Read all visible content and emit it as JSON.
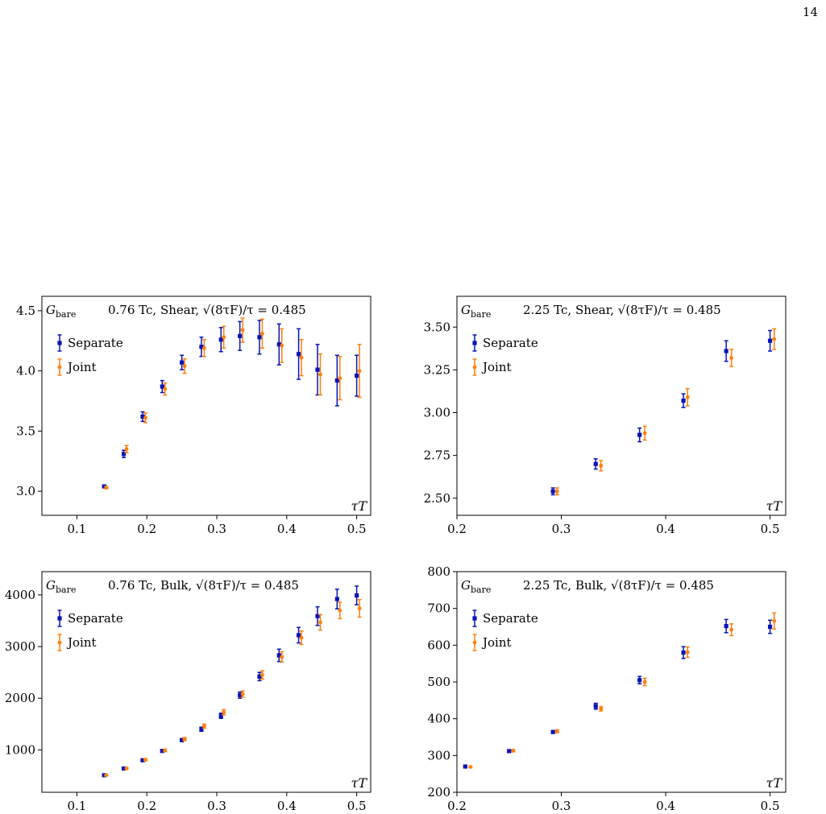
{
  "page": {
    "page_number": "14"
  },
  "colors": {
    "separate": "#0a14b4",
    "joint": "#ff7f0e",
    "axes": "#000000"
  },
  "chart_data": [
    {
      "type": "scatter",
      "title": "0.76 Tc, Shear, √(8τF)/τ = 0.485",
      "ylabel_inset": "G_bare",
      "xlabel": "τT",
      "xlim": [
        0.05,
        0.52
      ],
      "ylim": [
        2.8,
        4.62
      ],
      "xticks": [
        0.1,
        0.2,
        0.3,
        0.4,
        0.5
      ],
      "xtick_labels": [
        "0.1",
        "0.2",
        "0.3",
        "0.4",
        "0.5"
      ],
      "yticks": [
        3.0,
        3.5,
        4.0,
        4.5
      ],
      "ytick_labels": [
        "3.0",
        "3.5",
        "4.0",
        "4.5"
      ],
      "legend_position": "upper-left",
      "series": [
        {
          "name": "Separate",
          "marker": "square",
          "x": [
            0.139,
            0.167,
            0.194,
            0.222,
            0.25,
            0.278,
            0.306,
            0.333,
            0.361,
            0.389,
            0.417,
            0.444,
            0.472,
            0.5
          ],
          "y": [
            3.04,
            3.31,
            3.62,
            3.87,
            4.07,
            4.2,
            4.26,
            4.29,
            4.28,
            4.22,
            4.14,
            4.01,
            3.92,
            3.96
          ],
          "yerr": [
            0.01,
            0.03,
            0.04,
            0.05,
            0.06,
            0.08,
            0.1,
            0.12,
            0.14,
            0.17,
            0.21,
            0.21,
            0.21,
            0.17
          ]
        },
        {
          "name": "Joint",
          "marker": "dot",
          "x": [
            0.142,
            0.171,
            0.198,
            0.226,
            0.254,
            0.282,
            0.31,
            0.337,
            0.365,
            0.393,
            0.421,
            0.448,
            0.476,
            0.504
          ],
          "y": [
            3.03,
            3.35,
            3.61,
            3.85,
            4.04,
            4.19,
            4.28,
            4.34,
            4.31,
            4.21,
            4.11,
            3.97,
            3.94,
            4.0
          ],
          "yerr": [
            0.01,
            0.03,
            0.04,
            0.05,
            0.06,
            0.07,
            0.09,
            0.1,
            0.12,
            0.14,
            0.15,
            0.17,
            0.18,
            0.22
          ]
        }
      ]
    },
    {
      "type": "scatter",
      "title": "2.25 Tc, Shear, √(8τF)/τ = 0.485",
      "ylabel_inset": "G_bare",
      "xlabel": "τT",
      "xlim": [
        0.2,
        0.515
      ],
      "ylim": [
        2.4,
        3.68
      ],
      "xticks": [
        0.2,
        0.3,
        0.4,
        0.5
      ],
      "xtick_labels": [
        "0.2",
        "0.3",
        "0.4",
        "0.5"
      ],
      "yticks": [
        2.5,
        2.75,
        3.0,
        3.25,
        3.5
      ],
      "ytick_labels": [
        "2.50",
        "2.75",
        "3.00",
        "3.25",
        "3.50"
      ],
      "legend_position": "upper-left",
      "series": [
        {
          "name": "Separate",
          "marker": "square",
          "x": [
            0.292,
            0.333,
            0.375,
            0.417,
            0.458,
            0.5
          ],
          "y": [
            2.54,
            2.7,
            2.87,
            3.07,
            3.36,
            3.42
          ],
          "yerr": [
            0.02,
            0.03,
            0.04,
            0.04,
            0.06,
            0.06
          ]
        },
        {
          "name": "Joint",
          "marker": "dot",
          "x": [
            0.296,
            0.338,
            0.38,
            0.421,
            0.463,
            0.504
          ],
          "y": [
            2.54,
            2.69,
            2.88,
            3.09,
            3.32,
            3.43
          ],
          "yerr": [
            0.02,
            0.03,
            0.04,
            0.05,
            0.05,
            0.06
          ]
        }
      ]
    },
    {
      "type": "scatter",
      "title": "0.76 Tc, Bulk, √(8τF)/τ = 0.485",
      "ylabel_inset": "G_bare",
      "xlabel": "τT",
      "xlim": [
        0.05,
        0.52
      ],
      "ylim": [
        180,
        4450
      ],
      "xticks": [
        0.1,
        0.2,
        0.3,
        0.4,
        0.5
      ],
      "xtick_labels": [
        "0.1",
        "0.2",
        "0.3",
        "0.4",
        "0.5"
      ],
      "yticks": [
        1000,
        2000,
        3000,
        4000
      ],
      "ytick_labels": [
        "1000",
        "2000",
        "3000",
        "4000"
      ],
      "legend_position": "upper-left",
      "series": [
        {
          "name": "Separate",
          "marker": "square",
          "x": [
            0.139,
            0.167,
            0.194,
            0.222,
            0.25,
            0.278,
            0.306,
            0.333,
            0.361,
            0.389,
            0.417,
            0.444,
            0.472,
            0.5
          ],
          "y": [
            510,
            640,
            800,
            980,
            1190,
            1400,
            1660,
            2060,
            2420,
            2830,
            3220,
            3590,
            3920,
            3990
          ],
          "yerr": [
            10,
            15,
            20,
            25,
            30,
            40,
            50,
            60,
            80,
            120,
            150,
            180,
            190,
            180
          ]
        },
        {
          "name": "Joint",
          "marker": "dot",
          "x": [
            0.142,
            0.171,
            0.198,
            0.226,
            0.254,
            0.282,
            0.31,
            0.337,
            0.365,
            0.393,
            0.421,
            0.448,
            0.476,
            0.504
          ],
          "y": [
            510,
            640,
            810,
            990,
            1210,
            1460,
            1730,
            2080,
            2450,
            2800,
            3170,
            3470,
            3700,
            3740
          ],
          "yerr": [
            10,
            15,
            20,
            25,
            30,
            40,
            50,
            60,
            80,
            100,
            130,
            150,
            160,
            170
          ]
        }
      ]
    },
    {
      "type": "scatter",
      "title": "2.25 Tc, Bulk, √(8τF)/τ = 0.485",
      "ylabel_inset": "G_bare",
      "xlabel": "τT",
      "xlim": [
        0.2,
        0.515
      ],
      "ylim": [
        200,
        800
      ],
      "xticks": [
        0.2,
        0.3,
        0.4,
        0.5
      ],
      "xtick_labels": [
        "0.2",
        "0.3",
        "0.4",
        "0.5"
      ],
      "yticks": [
        200,
        300,
        400,
        500,
        600,
        700,
        800
      ],
      "ytick_labels": [
        "200",
        "300",
        "400",
        "500",
        "600",
        "700",
        "800"
      ],
      "legend_position": "upper-left",
      "series": [
        {
          "name": "Separate",
          "marker": "square",
          "x": [
            0.208,
            0.25,
            0.292,
            0.333,
            0.375,
            0.417,
            0.458,
            0.5
          ],
          "y": [
            270,
            312,
            364,
            434,
            505,
            580,
            652,
            650
          ],
          "yerr": [
            2,
            3,
            4,
            8,
            10,
            16,
            18,
            18
          ]
        },
        {
          "name": "Joint",
          "marker": "dot",
          "x": [
            0.213,
            0.254,
            0.296,
            0.338,
            0.38,
            0.421,
            0.463,
            0.504
          ],
          "y": [
            269,
            313,
            366,
            427,
            500,
            581,
            642,
            666
          ],
          "yerr": [
            2,
            3,
            4,
            6,
            10,
            14,
            16,
            22
          ]
        }
      ]
    }
  ]
}
